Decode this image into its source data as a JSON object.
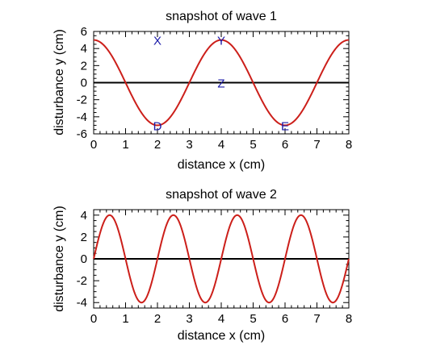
{
  "chart_data": [
    {
      "type": "line",
      "title": "snapshot of wave 1",
      "xlabel": "distance x (cm)",
      "ylabel": "disturbance y (cm)",
      "xlim": [
        0,
        8
      ],
      "ylim": [
        -6,
        6
      ],
      "xticks": [
        0,
        1,
        2,
        3,
        4,
        5,
        6,
        7,
        8
      ],
      "yticks": [
        -6,
        -4,
        -2,
        0,
        2,
        4,
        6
      ],
      "curve": {
        "function": "cosine",
        "amplitude": 5,
        "wavelength": 4,
        "phase": 0,
        "color": "#cc1f1a"
      },
      "x": [
        0,
        0.5,
        1,
        1.5,
        2,
        2.5,
        3,
        3.5,
        4,
        4.5,
        5,
        5.5,
        6,
        6.5,
        7,
        7.5,
        8
      ],
      "y": [
        5,
        3.54,
        0,
        -3.54,
        -5,
        -3.54,
        0,
        3.54,
        5,
        3.54,
        0,
        -3.54,
        -5,
        -3.54,
        0,
        3.54,
        5
      ],
      "zero_line_color": "#000000",
      "points": [
        {
          "label": "X",
          "x": 2,
          "y": 5
        },
        {
          "label": "Y",
          "x": 4,
          "y": 5
        },
        {
          "label": "Z",
          "x": 4,
          "y": 0
        },
        {
          "label": "D",
          "x": 2,
          "y": -5
        },
        {
          "label": "E",
          "x": 6,
          "y": -5
        }
      ],
      "label_color": "#1a1aa8",
      "grid": false
    },
    {
      "type": "line",
      "title": "snapshot of wave 2",
      "xlabel": "distance x (cm)",
      "ylabel": "disturbance y (cm)",
      "xlim": [
        0,
        8
      ],
      "ylim": [
        -4.5,
        4.5
      ],
      "xticks": [
        0,
        1,
        2,
        3,
        4,
        5,
        6,
        7,
        8
      ],
      "yticks": [
        -4,
        -2,
        0,
        2,
        4
      ],
      "curve": {
        "function": "sine",
        "amplitude": 4,
        "wavelength": 2,
        "phase": 0,
        "color": "#cc1f1a"
      },
      "x": [
        0,
        0.5,
        1,
        1.5,
        2,
        2.5,
        3,
        3.5,
        4,
        4.5,
        5,
        5.5,
        6,
        6.5,
        7,
        7.5,
        8
      ],
      "y": [
        0,
        4,
        0,
        -4,
        0,
        4,
        0,
        -4,
        0,
        4,
        0,
        -4,
        0,
        4,
        0,
        -4,
        0
      ],
      "zero_line_color": "#000000",
      "grid": false
    }
  ]
}
